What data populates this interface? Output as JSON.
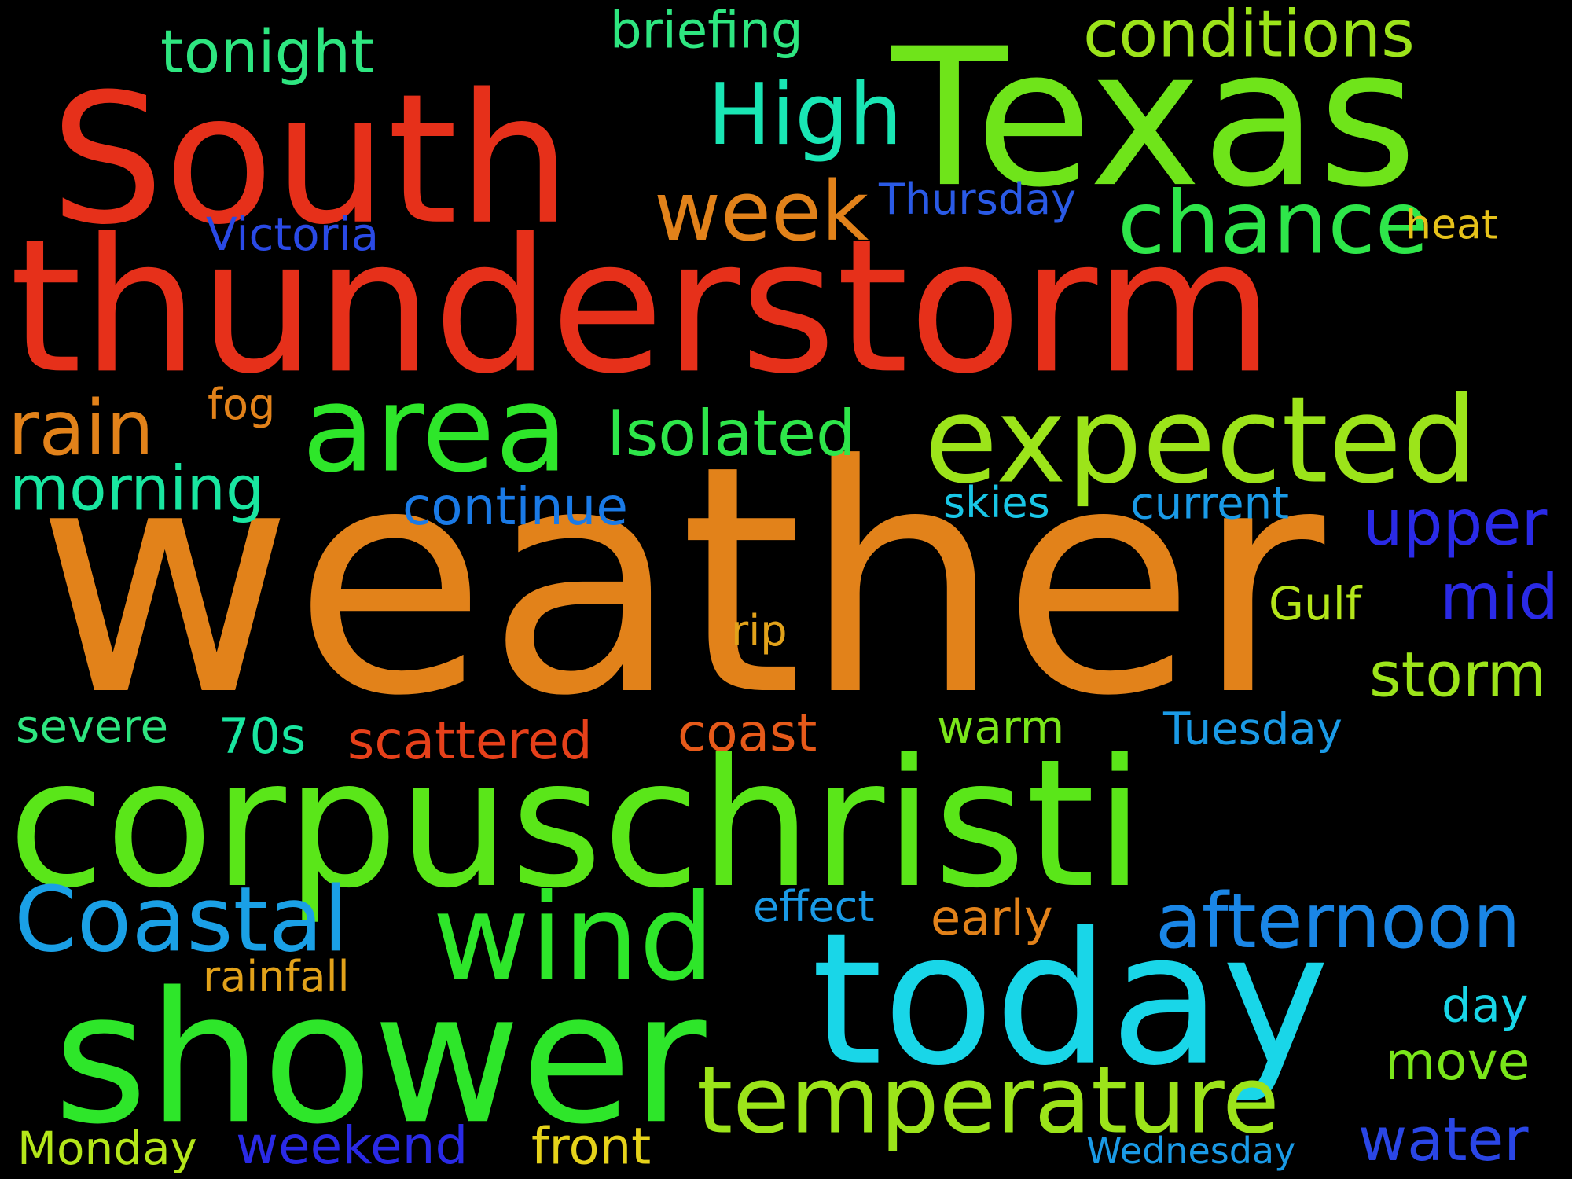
{
  "background": "#000000",
  "words": [
    {
      "text": "weather",
      "color": "#E2821A"
    },
    {
      "text": "corpuschristi",
      "color": "#5AE619"
    },
    {
      "text": "thunderstorm",
      "color": "#E6301A"
    },
    {
      "text": "Texas",
      "color": "#6FE41A"
    },
    {
      "text": "South",
      "color": "#E6301A"
    },
    {
      "text": "today",
      "color": "#19D6E8"
    },
    {
      "text": "shower",
      "color": "#2EE62A"
    },
    {
      "text": "expected",
      "color": "#9CE41A"
    },
    {
      "text": "area",
      "color": "#2EE62A"
    },
    {
      "text": "wind",
      "color": "#2EE62A"
    },
    {
      "text": "temperature",
      "color": "#9CE41A"
    },
    {
      "text": "Coastal",
      "color": "#1AA0E6"
    },
    {
      "text": "week",
      "color": "#E2821A"
    },
    {
      "text": "chance",
      "color": "#2EE64A"
    },
    {
      "text": "High",
      "color": "#19E6B4"
    },
    {
      "text": "afternoon",
      "color": "#1A86E6"
    },
    {
      "text": "conditions",
      "color": "#9CE41A"
    },
    {
      "text": "rain",
      "color": "#E2821A"
    },
    {
      "text": "tonight",
      "color": "#2EE680"
    },
    {
      "text": "morning",
      "color": "#19E6A0"
    },
    {
      "text": "Isolated",
      "color": "#2EE64A"
    },
    {
      "text": "upper",
      "color": "#2A2AE6"
    },
    {
      "text": "storm",
      "color": "#9CE41A"
    },
    {
      "text": "mid",
      "color": "#2A2AE6"
    },
    {
      "text": "water",
      "color": "#2A46E6"
    },
    {
      "text": "briefing",
      "color": "#2EE680"
    },
    {
      "text": "continue",
      "color": "#1A7AE6"
    },
    {
      "text": "scattered",
      "color": "#E6401A"
    },
    {
      "text": "coast",
      "color": "#E65A1A"
    },
    {
      "text": "weekend",
      "color": "#2A2AE6"
    },
    {
      "text": "front",
      "color": "#E6D21A"
    },
    {
      "text": "Monday",
      "color": "#B4E61A"
    },
    {
      "text": "severe",
      "color": "#2EE680"
    },
    {
      "text": "70s",
      "color": "#19E6A0"
    },
    {
      "text": "warm",
      "color": "#7AE61A"
    },
    {
      "text": "Tuesday",
      "color": "#1A9AE6"
    },
    {
      "text": "move",
      "color": "#7AE61A"
    },
    {
      "text": "day",
      "color": "#19D6E8"
    },
    {
      "text": "Gulf",
      "color": "#B4E61A"
    },
    {
      "text": "effect",
      "color": "#1A9AE6"
    },
    {
      "text": "early",
      "color": "#E2821A"
    },
    {
      "text": "rainfall",
      "color": "#E2A21A"
    },
    {
      "text": "Victoria",
      "color": "#2A4AE6"
    },
    {
      "text": "Thursday",
      "color": "#2A5AE6"
    },
    {
      "text": "heat",
      "color": "#E6C21A"
    },
    {
      "text": "fog",
      "color": "#E2821A"
    },
    {
      "text": "skies",
      "color": "#19C6E6"
    },
    {
      "text": "current",
      "color": "#1A9AE6"
    },
    {
      "text": "rip",
      "color": "#E2A21A"
    },
    {
      "text": "Wednesday",
      "color": "#1A9AE6"
    }
  ]
}
